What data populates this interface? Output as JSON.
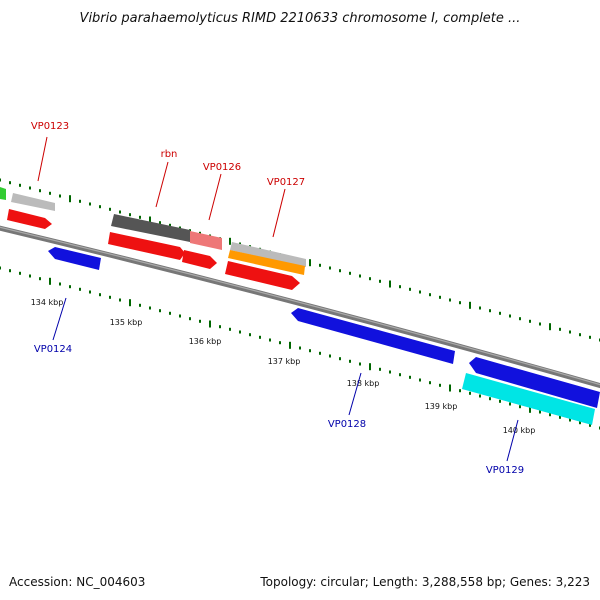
{
  "title": "Vibrio parahaemolyticus RIMD 2210633 chromosome I, complete ...",
  "footer": {
    "accession": "Accession: NC_004603",
    "summary": "Topology: circular; Length: 3,288,558 bp; Genes: 3,223"
  },
  "ruler": {
    "unit": "kbp",
    "labels": [
      "134 kbp",
      "135 kbp",
      "136 kbp",
      "137 kbp",
      "138 kbp",
      "139 kbp",
      "140 kbp"
    ]
  },
  "genes": [
    {
      "name": "VP0123",
      "strand": "forward"
    },
    {
      "name": "rbn",
      "strand": "forward"
    },
    {
      "name": "VP0126",
      "strand": "forward"
    },
    {
      "name": "VP0127",
      "strand": "forward"
    },
    {
      "name": "VP0124",
      "strand": "reverse"
    },
    {
      "name": "VP0128",
      "strand": "reverse"
    },
    {
      "name": "VP0129",
      "strand": "reverse"
    }
  ],
  "colors": {
    "forward_label": "#cc0000",
    "reverse_label": "#0000aa",
    "cds_forward": "#ee1111",
    "cds_reverse": "#1111dd",
    "gene_grey": "#bbbbbb",
    "gene_dark": "#555555",
    "gene_pink": "#ee7777",
    "orange": "#ff9900",
    "cyan": "#00e5e5",
    "green": "#33cc33",
    "tick": "#006600",
    "backbone": "#777777"
  }
}
